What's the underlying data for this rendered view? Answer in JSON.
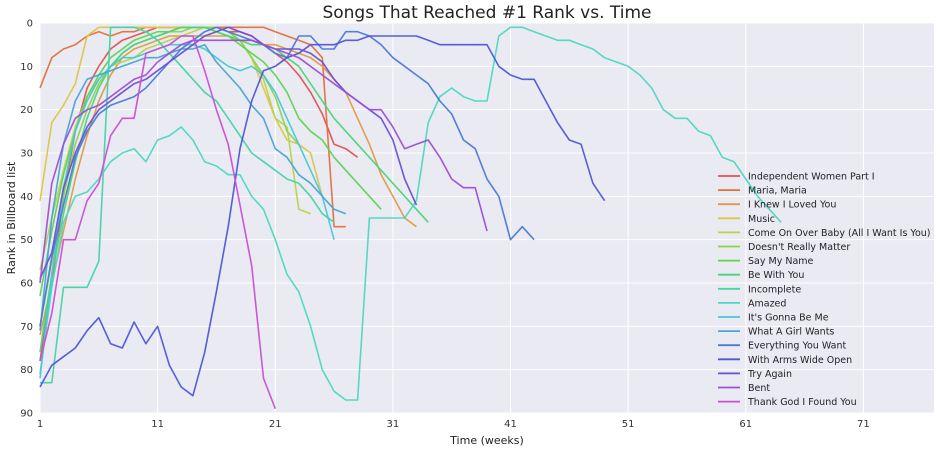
{
  "chart_data": {
    "type": "line",
    "title": "Songs That Reached #1 Rank vs. Time",
    "xlabel": "Time (weeks)",
    "ylabel": "Rank in Billboard list",
    "xlim": [
      1,
      77
    ],
    "ylim": [
      90,
      0
    ],
    "y_inverted": true,
    "xticks": [
      1,
      11,
      21,
      31,
      41,
      51,
      61,
      71
    ],
    "yticks": [
      0,
      10,
      20,
      30,
      40,
      50,
      60,
      70,
      80,
      90
    ],
    "grid": true,
    "legend_position": "right",
    "series": [
      {
        "name": "Independent Women Part I",
        "color": "#e05252",
        "values": [
          78,
          60,
          40,
          25,
          15,
          10,
          6,
          4,
          3,
          2,
          1,
          1,
          1,
          1,
          1,
          1,
          2,
          2,
          3,
          5,
          7,
          9,
          12,
          16,
          21,
          28,
          29,
          31
        ]
      },
      {
        "name": "Maria, Maria",
        "color": "#e0703d",
        "values": [
          15,
          8,
          6,
          5,
          3,
          2,
          3,
          2,
          2,
          1,
          1,
          1,
          1,
          1,
          1,
          1,
          1,
          1,
          1,
          1,
          2,
          3,
          4,
          5,
          8,
          47,
          47
        ]
      },
      {
        "name": "I Knew I Loved You",
        "color": "#e09a45",
        "values": [
          72,
          60,
          48,
          36,
          26,
          18,
          12,
          8,
          6,
          5,
          4,
          3,
          3,
          3,
          3,
          3,
          3,
          4,
          4,
          5,
          5,
          6,
          7,
          8,
          10,
          13,
          16,
          22,
          28,
          35,
          40,
          45,
          47
        ]
      },
      {
        "name": "Music",
        "color": "#dcc645",
        "values": [
          41,
          23,
          19,
          14,
          3,
          1,
          1,
          1,
          1,
          1,
          1,
          1,
          1,
          1,
          1,
          1,
          2,
          4,
          8,
          15,
          22,
          27,
          28,
          30,
          40
        ]
      },
      {
        "name": "Come On Over Baby (All I Want Is You)",
        "color": "#b6d44a",
        "values": [
          57,
          45,
          34,
          24,
          17,
          13,
          10,
          9,
          8,
          6,
          5,
          4,
          3,
          2,
          1,
          1,
          2,
          4,
          8,
          13,
          22,
          24,
          43,
          44
        ]
      },
      {
        "name": "Doesn't Really Matter",
        "color": "#8ad44f",
        "values": [
          70,
          55,
          40,
          28,
          20,
          14,
          10,
          7,
          5,
          4,
          3,
          2,
          2,
          1,
          1,
          1,
          2,
          4,
          8,
          12,
          17,
          25,
          28
        ]
      },
      {
        "name": "Say My Name",
        "color": "#5cd454",
        "values": [
          63,
          48,
          35,
          25,
          17,
          12,
          8,
          6,
          4,
          3,
          2,
          2,
          1,
          1,
          1,
          2,
          3,
          5,
          7,
          9,
          12,
          16,
          22,
          25,
          27,
          31,
          34,
          37,
          40,
          43
        ]
      },
      {
        "name": "Be With You",
        "color": "#4bd47a",
        "values": [
          76,
          58,
          44,
          32,
          22,
          15,
          10,
          7,
          5,
          4,
          3,
          2,
          1,
          1,
          1,
          2,
          3,
          4,
          5,
          5,
          6,
          8,
          10,
          14,
          18,
          22,
          25,
          28,
          31,
          34,
          37,
          40,
          43,
          46
        ]
      },
      {
        "name": "Incomplete",
        "color": "#45d4a5",
        "values": [
          83,
          83,
          61,
          61,
          61,
          55,
          1,
          1,
          1,
          2,
          4,
          7,
          10,
          13,
          16,
          18,
          22,
          26,
          30,
          32,
          34,
          36,
          37,
          40,
          44,
          46
        ]
      },
      {
        "name": "Amazed",
        "color": "#4cd8c0",
        "values": [
          81,
          61,
          46,
          40,
          39,
          36,
          32,
          30,
          29,
          32,
          27,
          26,
          24,
          27,
          32,
          33,
          35,
          35,
          40,
          43,
          50,
          58,
          62,
          70,
          80,
          85,
          87,
          87,
          45,
          45,
          45,
          45,
          41,
          23,
          17,
          15,
          17,
          18,
          18,
          3,
          1,
          1,
          2,
          3,
          4,
          4,
          5,
          6,
          8,
          9,
          10,
          12,
          15,
          20,
          22,
          22,
          25,
          26,
          31,
          32,
          36,
          40,
          43,
          46
        ]
      },
      {
        "name": "It's Gonna Be Me",
        "color": "#47c8d6",
        "values": [
          82,
          58,
          38,
          25,
          18,
          13,
          10,
          8,
          8,
          7,
          6,
          5,
          5,
          5,
          6,
          8,
          10,
          11,
          10,
          12,
          16,
          22,
          28,
          34,
          40,
          50
        ]
      },
      {
        "name": "What A Girl Wants",
        "color": "#4aa3d6",
        "values": [
          71,
          45,
          28,
          18,
          13,
          12,
          11,
          10,
          9,
          8,
          8,
          7,
          6,
          6,
          5,
          9,
          12,
          15,
          19,
          22,
          29,
          31,
          35,
          37,
          40,
          43,
          44
        ]
      },
      {
        "name": "Everything You Want",
        "color": "#4a7ad6",
        "values": [
          70,
          54,
          42,
          31,
          25,
          21,
          19,
          18,
          17,
          15,
          12,
          9,
          6,
          4,
          2,
          1,
          2,
          3,
          4,
          5,
          7,
          8,
          3,
          3,
          6,
          6,
          2,
          2,
          3,
          5,
          8,
          10,
          12,
          14,
          18,
          21,
          27,
          29,
          36,
          40,
          50,
          47,
          50
        ]
      },
      {
        "name": "With Arms Wide Open",
        "color": "#4e56d6",
        "values": [
          84,
          79,
          77,
          75,
          71,
          68,
          74,
          75,
          69,
          74,
          70,
          79,
          84,
          86,
          76,
          62,
          47,
          29,
          18,
          11,
          10,
          8,
          7,
          5,
          5,
          5,
          4,
          4,
          3,
          3,
          3,
          3,
          3,
          4,
          5,
          5,
          5,
          5,
          5,
          10,
          12,
          13,
          13,
          18,
          23,
          27,
          28,
          37,
          41
        ]
      },
      {
        "name": "Try Again",
        "color": "#6a4fd6",
        "values": [
          59,
          53,
          38,
          30,
          24,
          20,
          18,
          16,
          14,
          13,
          11,
          9,
          7,
          5,
          3,
          2,
          1,
          2,
          3,
          5,
          6,
          6,
          6,
          7,
          9,
          13,
          16,
          18,
          20,
          22,
          27,
          36,
          42
        ]
      },
      {
        "name": "Bent",
        "color": "#9b4fd6",
        "values": [
          60,
          37,
          28,
          22,
          20,
          19,
          17,
          15,
          13,
          12,
          9,
          7,
          5,
          4,
          4,
          4,
          4,
          4,
          4,
          5,
          6,
          7,
          8,
          10,
          12,
          14,
          16,
          18,
          20,
          20,
          24,
          29,
          28,
          27,
          31,
          36,
          38,
          38,
          48
        ]
      },
      {
        "name": "Thank God I Found You",
        "color": "#c94fd6",
        "values": [
          78,
          67,
          50,
          50,
          41,
          37,
          26,
          22,
          22,
          7,
          6,
          5,
          3,
          3,
          11,
          20,
          28,
          42,
          56,
          82,
          89
        ]
      }
    ]
  }
}
